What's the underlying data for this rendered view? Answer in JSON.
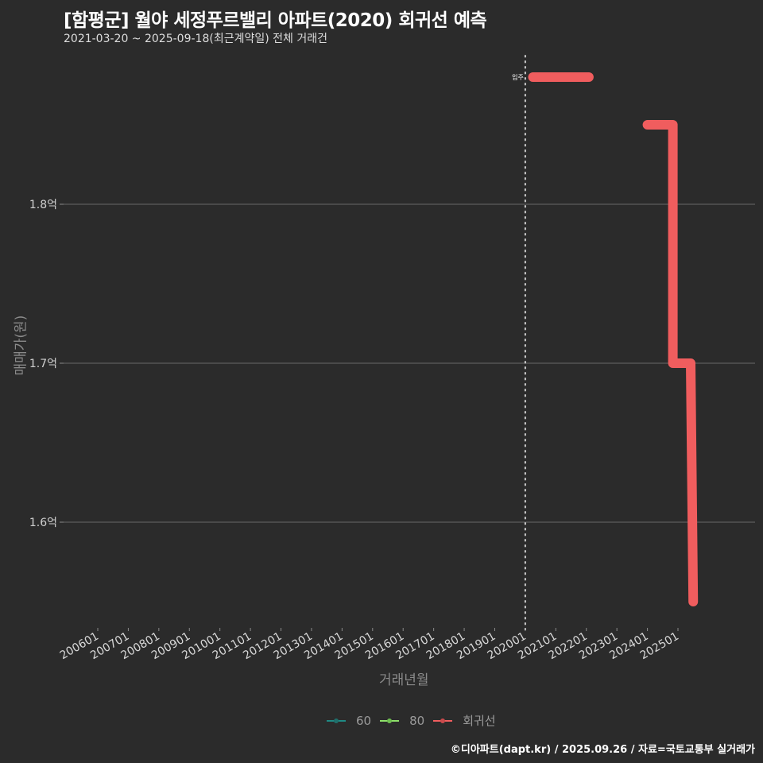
{
  "header": {
    "title": "[함평군] 월야 세정푸르밸리 아파트(2020) 회귀선 예측",
    "subtitle": "2021-03-20 ~ 2025-09-18(최근계약일) 전체 거래건"
  },
  "axes": {
    "ylabel": "매매가(원)",
    "xlabel": "거래년월"
  },
  "legend": {
    "items": [
      {
        "label": "60",
        "color": "#1f8a84"
      },
      {
        "label": "80",
        "color": "#8ee06a"
      },
      {
        "label": "회귀선",
        "color": "#f05d5e"
      }
    ]
  },
  "annotation": {
    "label": "입주",
    "x": "202001"
  },
  "footer": {
    "credit": "©디아파트(dapt.kr) / 2025.09.26 / 자료=국토교통부 실거래가"
  },
  "chart_data": {
    "type": "line",
    "title": "[함평군] 월야 세정푸르밸리 아파트(2020) 회귀선 예측",
    "subtitle": "2021-03-20 ~ 2025-09-18(최근계약일) 전체 거래건",
    "xlabel": "거래년월",
    "ylabel": "매매가(원)",
    "x_ticks": [
      "200601",
      "200701",
      "200801",
      "200901",
      "201001",
      "201101",
      "201201",
      "201301",
      "201401",
      "201501",
      "201601",
      "201701",
      "201801",
      "201901",
      "202001",
      "202101",
      "202201",
      "202301",
      "202401",
      "202501"
    ],
    "y_ticks": [
      {
        "value": 1.6,
        "label": "1.6억"
      },
      {
        "value": 1.7,
        "label": "1.7억"
      },
      {
        "value": 1.8,
        "label": "1.8억"
      }
    ],
    "ylim": [
      1.545,
      1.9
    ],
    "grid": {
      "horizontal": true,
      "vertical": false
    },
    "legend_position": "bottom",
    "vline": {
      "x": "202001",
      "label": "입주",
      "style": "dotted"
    },
    "series": [
      {
        "name": "회귀선",
        "color": "#f05d5e",
        "segments": [
          [
            {
              "x": "202004",
              "y": 1.88
            },
            {
              "x": "202202",
              "y": 1.88
            }
          ],
          [
            {
              "x": "202401",
              "y": 1.85
            },
            {
              "x": "202411",
              "y": 1.85
            },
            {
              "x": "202411",
              "y": 1.7
            },
            {
              "x": "202506",
              "y": 1.7
            },
            {
              "x": "202507",
              "y": 1.55
            }
          ]
        ]
      },
      {
        "name": "60",
        "color": "#1f8a84",
        "points": []
      },
      {
        "name": "80",
        "color": "#8ee06a",
        "points": []
      }
    ]
  }
}
